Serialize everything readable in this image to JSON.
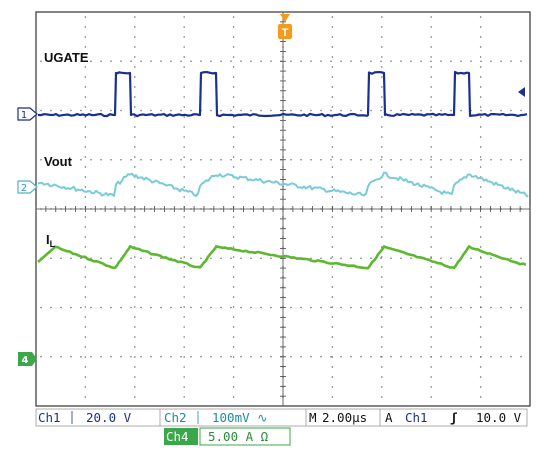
{
  "traces": {
    "ugate": {
      "label": "UGATE",
      "channel": "1",
      "color": "#1b2f8f"
    },
    "vout": {
      "label": "Vout",
      "channel": "2",
      "color": "#79cbd8"
    },
    "il": {
      "label_main": "I",
      "label_sub": "L",
      "channel": "4",
      "color": "#5cb82f"
    }
  },
  "trigger_marker": "T",
  "readouts": {
    "ch1": {
      "name": "Ch1",
      "value": "20.0 V"
    },
    "ch2": {
      "name": "Ch2",
      "value": "100mV ∿"
    },
    "ch4": {
      "name": "Ch4",
      "value": "5.00 A Ω"
    },
    "timebase": {
      "prefix": "M",
      "value": "2.00μs"
    },
    "trigger": {
      "mode": "A",
      "source": "Ch1",
      "slope": "ʃ",
      "level": "10.0 V"
    }
  },
  "colors": {
    "ch1_text": "#1b2f8f",
    "ch2_text": "#1f8c9c",
    "ch4_fill": "#3aa84a",
    "trigger_marker": "#f29b1d",
    "grid": "#555555"
  }
}
